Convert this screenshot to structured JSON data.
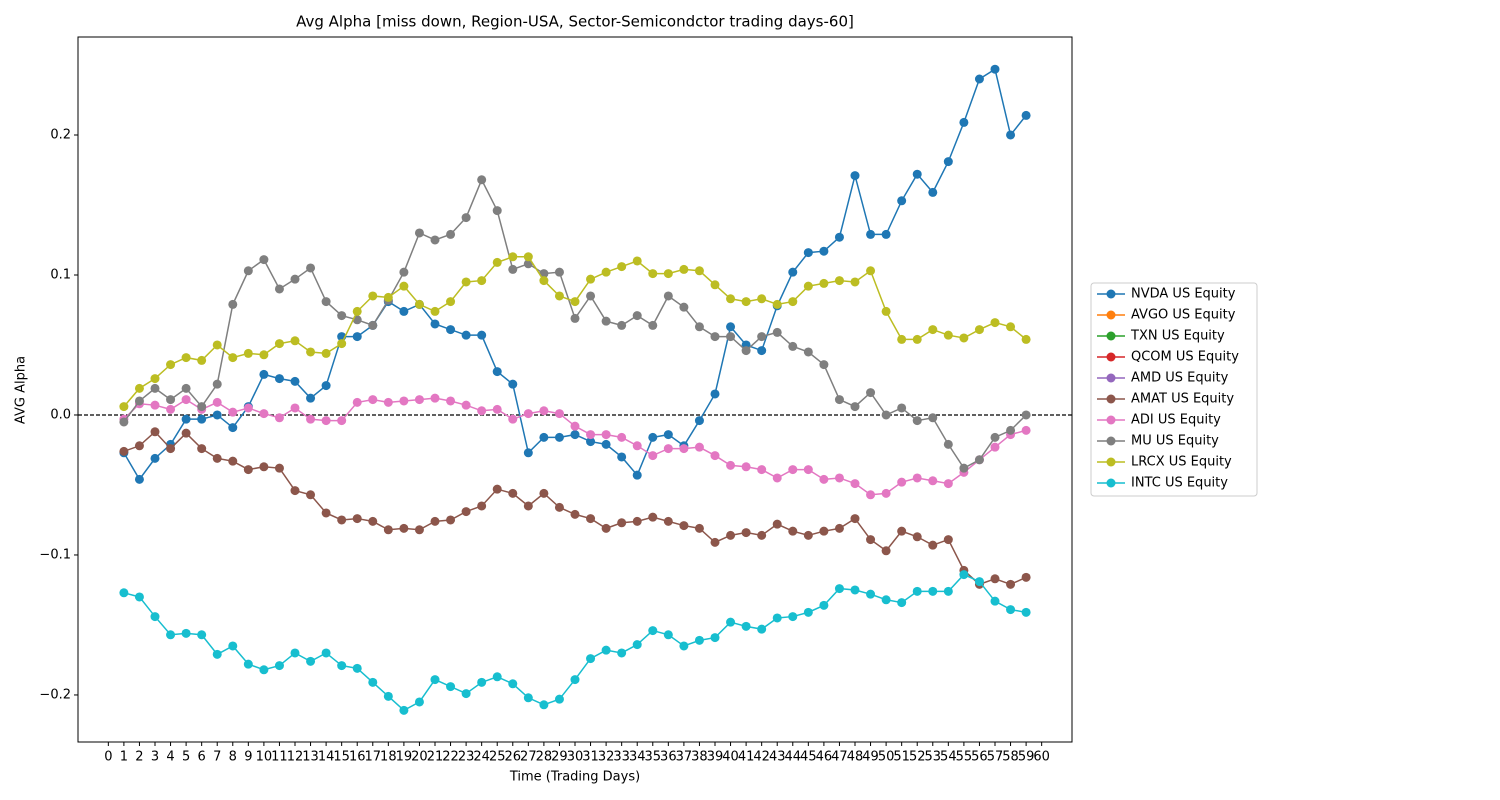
{
  "chart_data": {
    "type": "line",
    "title": "Avg Alpha [miss down, Region-USA, Sector-Semicondctor trading days-60]",
    "xlabel": "Time (Trading Days)",
    "ylabel": "AVG Alpha",
    "x": [
      1,
      2,
      3,
      4,
      5,
      6,
      7,
      8,
      9,
      10,
      11,
      12,
      13,
      14,
      15,
      16,
      17,
      18,
      19,
      20,
      21,
      22,
      23,
      24,
      25,
      26,
      27,
      28,
      29,
      30,
      31,
      32,
      33,
      34,
      35,
      36,
      37,
      38,
      39,
      40,
      41,
      42,
      43,
      44,
      45,
      46,
      47,
      48,
      49,
      50,
      51,
      52,
      53,
      54,
      55,
      56,
      57,
      58,
      59
    ],
    "xlim": [
      -1.95,
      61.95
    ],
    "xticks": [
      0,
      1,
      2,
      3,
      4,
      5,
      6,
      7,
      8,
      9,
      10,
      11,
      12,
      13,
      14,
      15,
      16,
      17,
      18,
      19,
      20,
      21,
      22,
      23,
      24,
      25,
      26,
      27,
      28,
      29,
      30,
      31,
      32,
      33,
      34,
      35,
      36,
      37,
      38,
      39,
      40,
      41,
      42,
      43,
      44,
      45,
      46,
      47,
      48,
      49,
      50,
      51,
      52,
      53,
      54,
      55,
      56,
      57,
      58,
      59,
      60
    ],
    "ylim": [
      -0.2336,
      0.27
    ],
    "yticks": [
      {
        "value": -0.2,
        "label": "−0.2"
      },
      {
        "value": -0.1,
        "label": "−0.1"
      },
      {
        "value": 0,
        "label": "0.0"
      },
      0.1,
      0.2
    ],
    "hline": 0,
    "legend": "right",
    "series": [
      {
        "name": "NVDA US Equity",
        "color": "#1f77b4",
        "values": [
          -0.027,
          -0.046,
          -0.031,
          -0.021,
          -0.003,
          -0.003,
          0.0,
          -0.009,
          0.006,
          0.029,
          0.026,
          0.024,
          0.012,
          0.021,
          0.056,
          0.056,
          0.064,
          0.081,
          0.074,
          0.079,
          0.065,
          0.061,
          0.057,
          0.057,
          0.031,
          0.022,
          -0.027,
          -0.016,
          -0.016,
          -0.014,
          -0.019,
          -0.021,
          -0.03,
          -0.043,
          -0.016,
          -0.014,
          -0.022,
          -0.004,
          0.015,
          0.063,
          0.05,
          0.046,
          0.078,
          0.102,
          0.116,
          0.117,
          0.127,
          0.171,
          0.129,
          0.129,
          0.153,
          0.172,
          0.159,
          0.181,
          0.209,
          0.24,
          0.247,
          0.2,
          0.214
        ]
      },
      {
        "name": "AVGO US Equity",
        "color": "#ff7f0e",
        "values": [
          null,
          null,
          null,
          null,
          null,
          null,
          null,
          null,
          null,
          null,
          null,
          null,
          null,
          null,
          null,
          null,
          null,
          null,
          null,
          null,
          null,
          null,
          null,
          null,
          null,
          null,
          null,
          null,
          null,
          null,
          null,
          null,
          null,
          null,
          null,
          null,
          null,
          null,
          null,
          null,
          null,
          null,
          null,
          null,
          null,
          null,
          null,
          null,
          null,
          null,
          null,
          null,
          null,
          null,
          null,
          null,
          null,
          null,
          null
        ]
      },
      {
        "name": "TXN US Equity",
        "color": "#2ca02c",
        "values": [
          null,
          null,
          null,
          null,
          null,
          null,
          null,
          null,
          null,
          null,
          null,
          null,
          null,
          null,
          null,
          null,
          null,
          null,
          null,
          null,
          null,
          null,
          null,
          null,
          null,
          null,
          null,
          null,
          null,
          null,
          null,
          null,
          null,
          null,
          null,
          null,
          null,
          null,
          null,
          null,
          null,
          null,
          null,
          null,
          null,
          null,
          null,
          null,
          null,
          null,
          null,
          null,
          null,
          null,
          null,
          null,
          null,
          null,
          null
        ]
      },
      {
        "name": "QCOM US Equity",
        "color": "#d62728",
        "values": [
          null,
          null,
          null,
          null,
          null,
          null,
          null,
          null,
          null,
          null,
          null,
          null,
          null,
          null,
          null,
          null,
          null,
          null,
          null,
          null,
          null,
          null,
          null,
          null,
          null,
          null,
          null,
          null,
          null,
          null,
          null,
          null,
          null,
          null,
          null,
          null,
          null,
          null,
          null,
          null,
          null,
          null,
          null,
          null,
          null,
          null,
          null,
          null,
          null,
          null,
          null,
          null,
          null,
          null,
          null,
          null,
          null,
          null,
          null
        ]
      },
      {
        "name": "AMD US Equity",
        "color": "#9467bd",
        "values": [
          null,
          null,
          null,
          null,
          null,
          null,
          null,
          null,
          null,
          null,
          null,
          null,
          null,
          null,
          null,
          null,
          null,
          null,
          null,
          null,
          null,
          null,
          null,
          null,
          null,
          null,
          null,
          null,
          null,
          null,
          null,
          null,
          null,
          null,
          null,
          null,
          null,
          null,
          null,
          null,
          null,
          null,
          null,
          null,
          null,
          null,
          null,
          null,
          null,
          null,
          null,
          null,
          null,
          null,
          null,
          null,
          null,
          null,
          null
        ]
      },
      {
        "name": "AMAT US Equity",
        "color": "#8c564b",
        "values": [
          -0.026,
          -0.022,
          -0.012,
          -0.024,
          -0.013,
          -0.024,
          -0.031,
          -0.033,
          -0.039,
          -0.037,
          -0.038,
          -0.054,
          -0.057,
          -0.07,
          -0.075,
          -0.074,
          -0.076,
          -0.082,
          -0.081,
          -0.082,
          -0.076,
          -0.075,
          -0.069,
          -0.065,
          -0.053,
          -0.056,
          -0.065,
          -0.056,
          -0.066,
          -0.071,
          -0.074,
          -0.081,
          -0.077,
          -0.076,
          -0.073,
          -0.076,
          -0.079,
          -0.081,
          -0.091,
          -0.086,
          -0.084,
          -0.086,
          -0.078,
          -0.083,
          -0.086,
          -0.083,
          -0.081,
          -0.074,
          -0.089,
          -0.097,
          -0.083,
          -0.087,
          -0.093,
          -0.089,
          -0.111,
          -0.121,
          -0.117,
          -0.121,
          -0.116
        ]
      },
      {
        "name": "ADI US Equity",
        "color": "#e377c2",
        "values": [
          -0.003,
          0.008,
          0.007,
          0.004,
          0.011,
          0.004,
          0.009,
          0.002,
          0.005,
          0.001,
          -0.002,
          0.005,
          -0.003,
          -0.004,
          -0.004,
          0.009,
          0.011,
          0.009,
          0.01,
          0.011,
          0.012,
          0.01,
          0.007,
          0.003,
          0.004,
          -0.003,
          0.001,
          0.003,
          0.001,
          -0.008,
          -0.014,
          -0.014,
          -0.016,
          -0.022,
          -0.029,
          -0.024,
          -0.024,
          -0.023,
          -0.029,
          -0.036,
          -0.037,
          -0.039,
          -0.045,
          -0.039,
          -0.039,
          -0.046,
          -0.045,
          -0.049,
          -0.057,
          -0.056,
          -0.048,
          -0.045,
          -0.047,
          -0.049,
          -0.041,
          -0.032,
          -0.023,
          -0.014,
          -0.011
        ]
      },
      {
        "name": "MU US Equity",
        "color": "#7f7f7f",
        "values": [
          -0.005,
          0.01,
          0.019,
          0.011,
          0.019,
          0.006,
          0.022,
          0.079,
          0.103,
          0.111,
          0.09,
          0.097,
          0.105,
          0.081,
          0.071,
          0.068,
          0.064,
          0.082,
          0.102,
          0.13,
          0.125,
          0.129,
          0.141,
          0.168,
          0.146,
          0.104,
          0.108,
          0.101,
          0.102,
          0.069,
          0.085,
          0.067,
          0.064,
          0.071,
          0.064,
          0.085,
          0.077,
          0.063,
          0.056,
          0.056,
          0.046,
          0.056,
          0.059,
          0.049,
          0.045,
          0.036,
          0.011,
          0.006,
          0.016,
          0.0,
          0.005,
          -0.004,
          -0.002,
          -0.021,
          -0.038,
          -0.032,
          -0.016,
          -0.011,
          0.0
        ]
      },
      {
        "name": "LRCX US Equity",
        "color": "#bcbd22",
        "values": [
          0.006,
          0.019,
          0.026,
          0.036,
          0.041,
          0.039,
          0.05,
          0.041,
          0.044,
          0.043,
          0.051,
          0.053,
          0.045,
          0.044,
          0.051,
          0.074,
          0.085,
          0.084,
          0.092,
          0.079,
          0.074,
          0.081,
          0.095,
          0.096,
          0.109,
          0.113,
          0.113,
          0.096,
          0.085,
          0.081,
          0.097,
          0.102,
          0.106,
          0.11,
          0.101,
          0.101,
          0.104,
          0.103,
          0.093,
          0.083,
          0.081,
          0.083,
          0.079,
          0.081,
          0.092,
          0.094,
          0.096,
          0.095,
          0.103,
          0.074,
          0.054,
          0.054,
          0.061,
          0.057,
          0.055,
          0.061,
          0.066,
          0.063,
          0.054
        ]
      },
      {
        "name": "INTC US Equity",
        "color": "#17becf",
        "values": [
          -0.127,
          -0.13,
          -0.144,
          -0.157,
          -0.156,
          -0.157,
          -0.171,
          -0.165,
          -0.178,
          -0.182,
          -0.179,
          -0.17,
          -0.176,
          -0.17,
          -0.179,
          -0.181,
          -0.191,
          -0.201,
          -0.211,
          -0.205,
          -0.189,
          -0.194,
          -0.199,
          -0.191,
          -0.187,
          -0.192,
          -0.202,
          -0.207,
          -0.203,
          -0.189,
          -0.174,
          -0.168,
          -0.17,
          -0.164,
          -0.154,
          -0.157,
          -0.165,
          -0.161,
          -0.159,
          -0.148,
          -0.151,
          -0.153,
          -0.145,
          -0.144,
          -0.141,
          -0.136,
          -0.124,
          -0.125,
          -0.128,
          -0.132,
          -0.134,
          -0.126,
          -0.126,
          -0.126,
          -0.114,
          -0.119,
          -0.133,
          -0.139,
          -0.141
        ]
      }
    ]
  }
}
